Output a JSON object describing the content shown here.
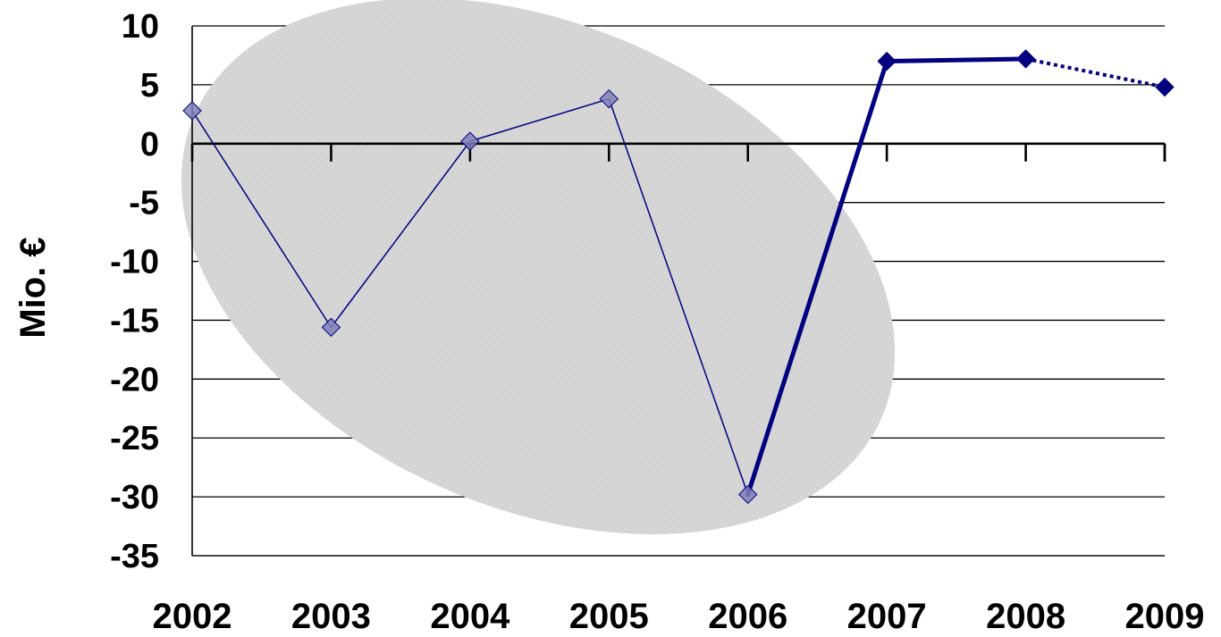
{
  "chart_data": {
    "type": "line",
    "title": "",
    "xlabel": "",
    "ylabel": "Mio. €",
    "categories": [
      "2002",
      "2003",
      "2004",
      "2005",
      "2006",
      "2007",
      "2008",
      "2009"
    ],
    "ylim": [
      -35,
      10
    ],
    "yticks": [
      10,
      5,
      0,
      -5,
      -10,
      -15,
      -20,
      -25,
      -30,
      -35
    ],
    "grid": true,
    "legend": "none",
    "series": [
      {
        "values": [
          2.8,
          -15.6,
          0.2,
          3.8,
          -29.8,
          7.0,
          7.2,
          4.8
        ],
        "color": "#000080",
        "marker": "diamond",
        "segment_styles": [
          "thin",
          "thin",
          "thin",
          "thin",
          "thick",
          "thick",
          "dotted"
        ]
      }
    ],
    "highlight_region": {
      "shape": "ellipse",
      "covers_categories": [
        "2002",
        "2003",
        "2004",
        "2005",
        "2006"
      ],
      "color": "#d3d3d3"
    }
  }
}
